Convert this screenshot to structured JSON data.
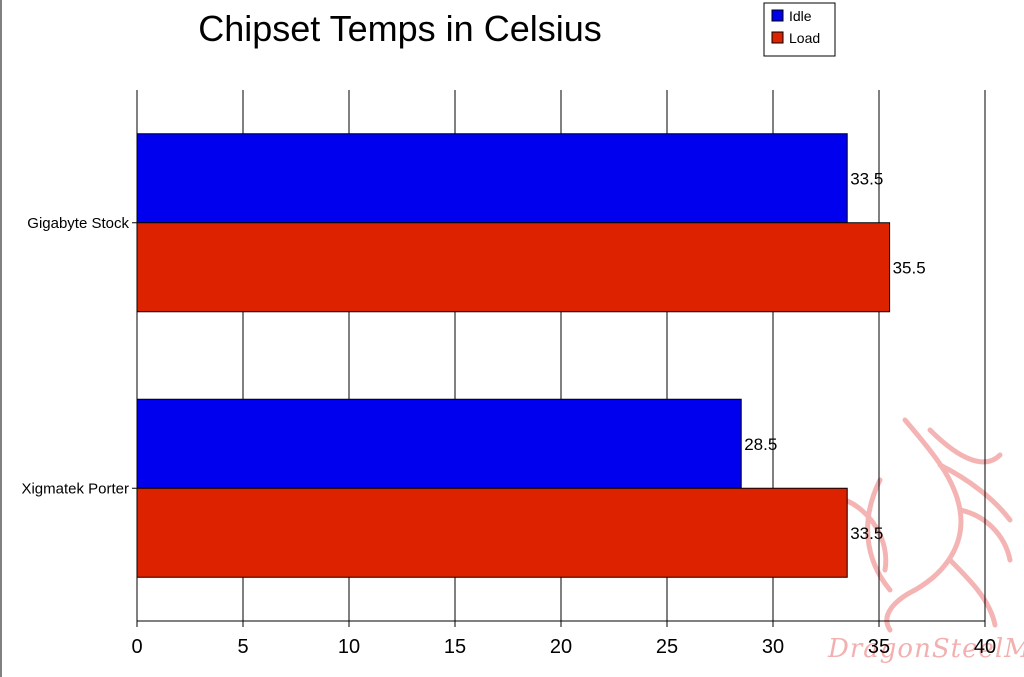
{
  "chart_data": {
    "type": "bar",
    "orientation": "horizontal",
    "title": "Chipset Temps in Celsius",
    "categories": [
      "Gigabyte Stock",
      "Xigmatek Porter"
    ],
    "series": [
      {
        "name": "Idle",
        "color": "#0000ee",
        "values": [
          33.5,
          28.5
        ]
      },
      {
        "name": "Load",
        "color": "#dd2200",
        "values": [
          35.5,
          33.5
        ]
      }
    ],
    "xlim": [
      0,
      40
    ],
    "xticks": [
      0,
      5,
      10,
      15,
      20,
      25,
      30,
      35,
      40
    ],
    "grid": "vertical",
    "legend_position": "top-right",
    "xlabel": "",
    "ylabel": ""
  },
  "watermark": {
    "text": "DragonSteelMods",
    "color": "#f3b0b0",
    "icon": "dragon-icon"
  }
}
